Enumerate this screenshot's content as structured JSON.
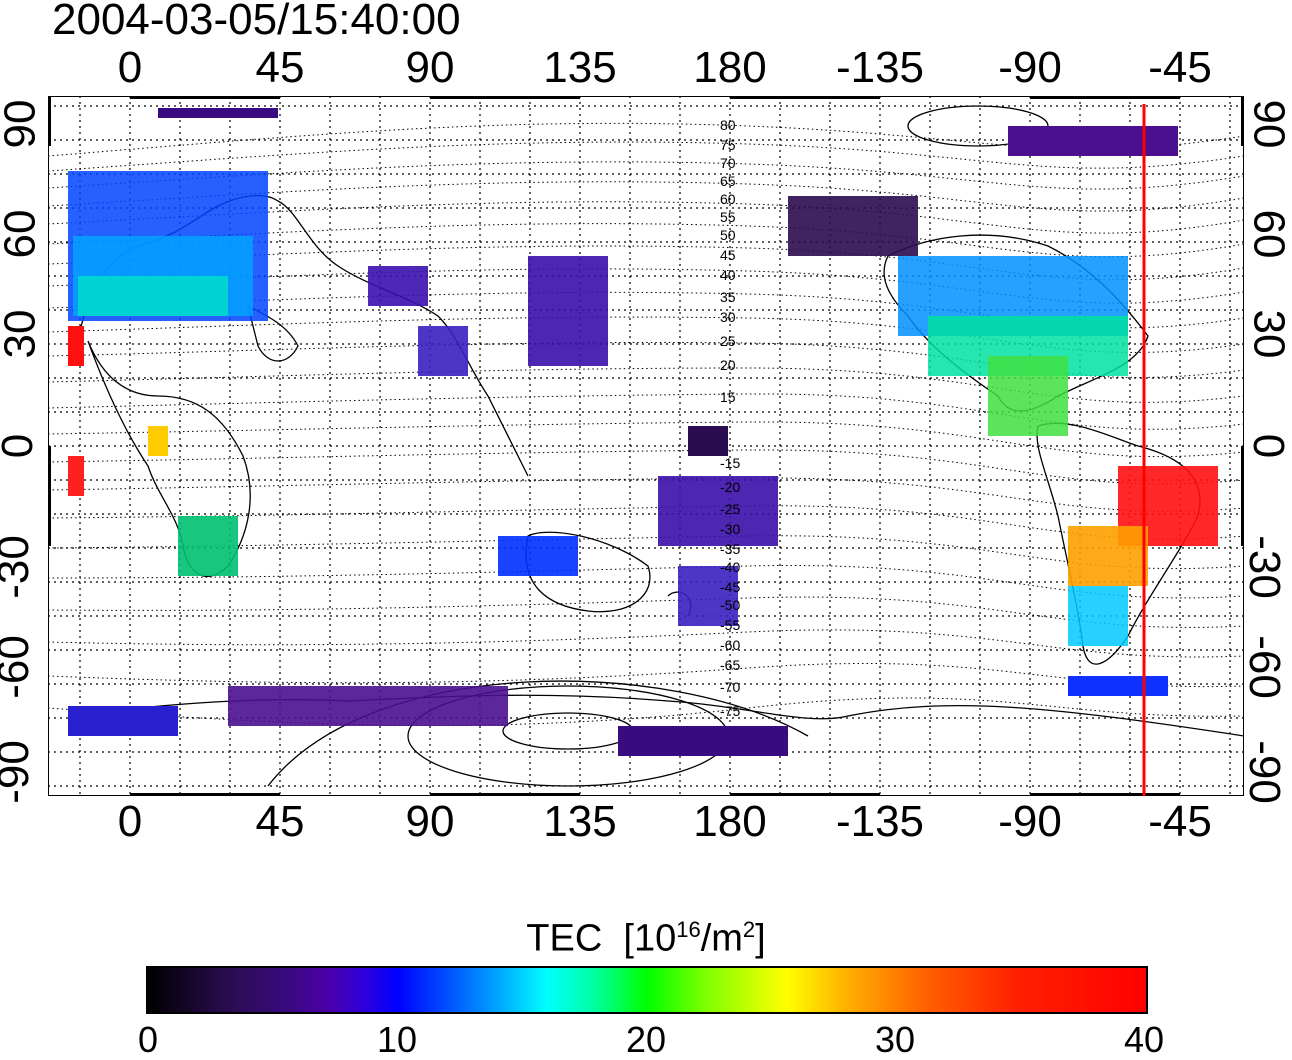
{
  "timestamp": "2004-03-05/15:40:00",
  "map": {
    "lon_ticks": [
      "0",
      "45",
      "90",
      "135",
      "180",
      "-135",
      "-90",
      "-45"
    ],
    "lat_ticks": [
      "90",
      "60",
      "30",
      "0",
      "-30",
      "-60",
      "-90"
    ],
    "contour_labels": [
      "80",
      "75",
      "70",
      "65",
      "60",
      "55",
      "50",
      "45",
      "40",
      "35",
      "30",
      "25",
      "20",
      "15",
      "-15",
      "-20",
      "-25",
      "-30",
      "-35",
      "-40",
      "-45",
      "-50",
      "-55",
      "-60",
      "-65",
      "-70",
      "-75"
    ],
    "terminator_longitude": -55,
    "terminator_color": "#ff0000"
  },
  "colorbar": {
    "title": "TEC",
    "unit_prefix": "[10",
    "unit_exp": "16",
    "unit_mid": "/m",
    "unit_exp2": "2",
    "unit_suffix": "]",
    "ticks": [
      "0",
      "10",
      "20",
      "30",
      "40"
    ],
    "min": 0,
    "max": 40
  }
}
